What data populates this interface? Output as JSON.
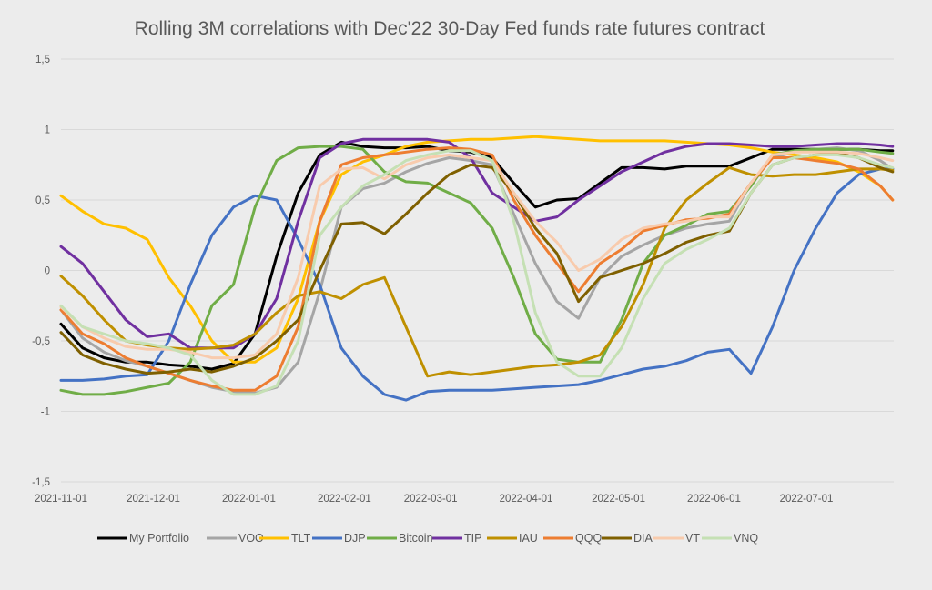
{
  "chart_data": {
    "type": "line",
    "title": "Rolling 3M correlations with Dec'22 30-Day Fed funds rate futures contract",
    "xlabel": "",
    "ylabel": "",
    "ylim": [
      -1.5,
      1.5
    ],
    "yticks": [
      1.5,
      1,
      0.5,
      0,
      -0.5,
      -1,
      -1.5
    ],
    "ytick_labels": [
      "1,5",
      "1",
      "0,5",
      "0",
      "-0,5",
      "-1",
      "-1,5"
    ],
    "xtick_labels": [
      "2021-11-01",
      "2021-12-01",
      "2022-01-01",
      "2022-02-01",
      "2022-03-01",
      "2022-04-01",
      "2022-05-01",
      "2022-06-01",
      "2022-07-01"
    ],
    "xtick_days": [
      0,
      30,
      61,
      92,
      120,
      151,
      181,
      212,
      242
    ],
    "x_start": "2021-11-01",
    "x_days": [
      0,
      7,
      14,
      21,
      28,
      35,
      42,
      49,
      56,
      63,
      70,
      77,
      84,
      91,
      98,
      105,
      112,
      119,
      126,
      133,
      140,
      147,
      154,
      161,
      168,
      175,
      182,
      189,
      196,
      203,
      210,
      217,
      224,
      231,
      238,
      245,
      252,
      259,
      266,
      270
    ],
    "x_range_days": [
      0,
      270
    ],
    "grid": true,
    "legend_position": "bottom",
    "series": [
      {
        "name": "My Portfolio",
        "color": "#000000",
        "values": [
          -0.38,
          -0.55,
          -0.62,
          -0.65,
          -0.65,
          -0.67,
          -0.68,
          -0.7,
          -0.66,
          -0.45,
          0.1,
          0.55,
          0.82,
          0.91,
          0.88,
          0.87,
          0.87,
          0.88,
          0.85,
          0.84,
          0.8,
          0.62,
          0.45,
          0.5,
          0.51,
          0.62,
          0.73,
          0.73,
          0.72,
          0.74,
          0.74,
          0.74,
          0.8,
          0.86,
          0.86,
          0.86,
          0.86,
          0.86,
          0.85,
          0.85
        ]
      },
      {
        "name": "VOO",
        "color": "#a5a5a5",
        "values": [
          -0.28,
          -0.48,
          -0.58,
          -0.64,
          -0.68,
          -0.73,
          -0.78,
          -0.83,
          -0.86,
          -0.87,
          -0.83,
          -0.65,
          -0.15,
          0.45,
          0.58,
          0.62,
          0.7,
          0.76,
          0.8,
          0.78,
          0.75,
          0.4,
          0.05,
          -0.22,
          -0.34,
          -0.05,
          0.1,
          0.18,
          0.25,
          0.3,
          0.33,
          0.35,
          0.62,
          0.8,
          0.84,
          0.86,
          0.87,
          0.85,
          0.78,
          0.72
        ]
      },
      {
        "name": "TLT",
        "color": "#ffc000",
        "values": [
          0.53,
          0.42,
          0.33,
          0.3,
          0.22,
          -0.05,
          -0.25,
          -0.5,
          -0.65,
          -0.65,
          -0.55,
          -0.2,
          0.35,
          0.68,
          0.77,
          0.82,
          0.88,
          0.91,
          0.92,
          0.93,
          0.93,
          0.94,
          0.95,
          0.94,
          0.93,
          0.92,
          0.92,
          0.92,
          0.92,
          0.91,
          0.9,
          0.89,
          0.87,
          0.84,
          0.82,
          0.8,
          0.77,
          0.7,
          0.6,
          0.5
        ]
      },
      {
        "name": "DJP",
        "color": "#4472c4",
        "values": [
          -0.78,
          -0.78,
          -0.77,
          -0.75,
          -0.74,
          -0.5,
          -0.1,
          0.25,
          0.45,
          0.53,
          0.5,
          0.22,
          -0.1,
          -0.55,
          -0.75,
          -0.88,
          -0.92,
          -0.86,
          -0.85,
          -0.85,
          -0.85,
          -0.84,
          -0.83,
          -0.82,
          -0.81,
          -0.78,
          -0.74,
          -0.7,
          -0.68,
          -0.64,
          -0.58,
          -0.56,
          -0.73,
          -0.4,
          0.0,
          0.3,
          0.55,
          0.68,
          0.72,
          0.72
        ]
      },
      {
        "name": "Bitcoin",
        "color": "#70ad47",
        "values": [
          -0.85,
          -0.88,
          -0.88,
          -0.86,
          -0.83,
          -0.8,
          -0.65,
          -0.25,
          -0.1,
          0.45,
          0.78,
          0.87,
          0.88,
          0.88,
          0.86,
          0.7,
          0.63,
          0.62,
          0.55,
          0.48,
          0.3,
          -0.05,
          -0.45,
          -0.63,
          -0.65,
          -0.65,
          -0.35,
          0.05,
          0.25,
          0.32,
          0.4,
          0.42,
          0.6,
          0.82,
          0.85,
          0.86,
          0.86,
          0.86,
          0.84,
          0.83
        ]
      },
      {
        "name": "TIP",
        "color": "#7030a0",
        "values": [
          0.17,
          0.05,
          -0.15,
          -0.35,
          -0.47,
          -0.45,
          -0.55,
          -0.55,
          -0.55,
          -0.45,
          -0.2,
          0.35,
          0.8,
          0.9,
          0.93,
          0.93,
          0.93,
          0.93,
          0.91,
          0.8,
          0.55,
          0.45,
          0.35,
          0.38,
          0.5,
          0.6,
          0.7,
          0.77,
          0.84,
          0.88,
          0.9,
          0.9,
          0.89,
          0.88,
          0.88,
          0.89,
          0.9,
          0.9,
          0.89,
          0.88
        ]
      },
      {
        "name": "IAU",
        "color": "#bf9000",
        "values": [
          -0.04,
          -0.18,
          -0.35,
          -0.5,
          -0.53,
          -0.55,
          -0.56,
          -0.55,
          -0.53,
          -0.45,
          -0.3,
          -0.18,
          -0.15,
          -0.2,
          -0.1,
          -0.05,
          -0.4,
          -0.75,
          -0.72,
          -0.74,
          -0.72,
          -0.7,
          -0.68,
          -0.67,
          -0.65,
          -0.6,
          -0.4,
          -0.1,
          0.3,
          0.5,
          0.62,
          0.73,
          0.68,
          0.67,
          0.68,
          0.68,
          0.7,
          0.72,
          0.72,
          0.71
        ]
      },
      {
        "name": "QQQ",
        "color": "#ed7d31",
        "values": [
          -0.28,
          -0.45,
          -0.52,
          -0.62,
          -0.68,
          -0.73,
          -0.78,
          -0.82,
          -0.85,
          -0.85,
          -0.75,
          -0.4,
          0.35,
          0.75,
          0.8,
          0.82,
          0.84,
          0.86,
          0.87,
          0.86,
          0.82,
          0.5,
          0.25,
          0.05,
          -0.15,
          0.05,
          0.15,
          0.28,
          0.32,
          0.36,
          0.37,
          0.4,
          0.62,
          0.8,
          0.8,
          0.78,
          0.76,
          0.72,
          0.6,
          0.5
        ]
      },
      {
        "name": "DIA",
        "color": "#7f6000",
        "values": [
          -0.44,
          -0.6,
          -0.66,
          -0.7,
          -0.73,
          -0.72,
          -0.7,
          -0.72,
          -0.68,
          -0.62,
          -0.5,
          -0.35,
          0.0,
          0.33,
          0.34,
          0.26,
          0.4,
          0.55,
          0.68,
          0.75,
          0.73,
          0.55,
          0.3,
          0.12,
          -0.22,
          -0.05,
          0.0,
          0.05,
          0.12,
          0.2,
          0.25,
          0.28,
          0.55,
          0.75,
          0.8,
          0.82,
          0.83,
          0.8,
          0.73,
          0.7
        ]
      },
      {
        "name": "VT",
        "color": "#f8cbad",
        "values": [
          -0.26,
          -0.4,
          -0.48,
          -0.54,
          -0.56,
          -0.56,
          -0.58,
          -0.62,
          -0.62,
          -0.6,
          -0.45,
          -0.05,
          0.6,
          0.72,
          0.73,
          0.65,
          0.75,
          0.8,
          0.82,
          0.8,
          0.78,
          0.55,
          0.35,
          0.2,
          0.0,
          0.08,
          0.22,
          0.3,
          0.33,
          0.35,
          0.38,
          0.38,
          0.62,
          0.82,
          0.84,
          0.84,
          0.84,
          0.83,
          0.8,
          0.78
        ]
      },
      {
        "name": "VNQ",
        "color": "#c5e0b4",
        "values": [
          -0.25,
          -0.4,
          -0.45,
          -0.5,
          -0.52,
          -0.55,
          -0.6,
          -0.78,
          -0.88,
          -0.88,
          -0.82,
          -0.5,
          0.25,
          0.45,
          0.6,
          0.68,
          0.78,
          0.82,
          0.85,
          0.85,
          0.78,
          0.35,
          -0.3,
          -0.65,
          -0.75,
          -0.75,
          -0.55,
          -0.2,
          0.05,
          0.15,
          0.22,
          0.3,
          0.55,
          0.75,
          0.8,
          0.82,
          0.82,
          0.8,
          0.75,
          0.73
        ]
      }
    ]
  }
}
